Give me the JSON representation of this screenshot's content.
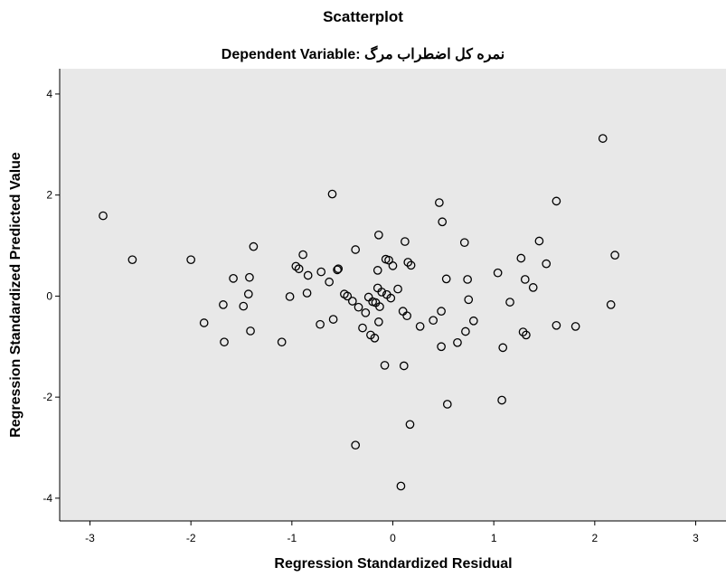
{
  "chart_data": {
    "type": "scatter",
    "title": "Scatterplot",
    "subtitle_prefix": "Dependent Variable: ",
    "subtitle_var": "نمره کل اضطراب مرگ",
    "xlabel": "Regression Standardized Residual",
    "ylabel": "Regression Standardized Predicted Value",
    "xlim": [
      -3.3,
      3.3
    ],
    "ylim": [
      -4.45,
      4.5
    ],
    "xticks": [
      -3,
      -2,
      -1,
      0,
      1,
      2,
      3
    ],
    "yticks": [
      -4,
      -2,
      0,
      2,
      4
    ],
    "grid": false,
    "plot_background": "#e8e8e8",
    "marker_color": "#000000",
    "points": [
      [
        -2.87,
        1.59
      ],
      [
        -2.58,
        0.72
      ],
      [
        -2.0,
        0.72
      ],
      [
        -1.87,
        -0.53
      ],
      [
        -1.68,
        -0.17
      ],
      [
        -1.67,
        -0.91
      ],
      [
        -1.58,
        0.35
      ],
      [
        -1.48,
        -0.2
      ],
      [
        -1.43,
        0.04
      ],
      [
        -1.42,
        0.37
      ],
      [
        -1.41,
        -0.69
      ],
      [
        -1.38,
        0.98
      ],
      [
        -1.1,
        -0.91
      ],
      [
        -1.02,
        -0.01
      ],
      [
        -0.96,
        0.59
      ],
      [
        -0.93,
        0.54
      ],
      [
        -0.89,
        0.82
      ],
      [
        -0.85,
        0.06
      ],
      [
        -0.84,
        0.41
      ],
      [
        -0.72,
        -0.56
      ],
      [
        -0.71,
        0.48
      ],
      [
        -0.63,
        0.28
      ],
      [
        -0.6,
        2.02
      ],
      [
        -0.59,
        -0.46
      ],
      [
        -0.55,
        0.52
      ],
      [
        -0.54,
        0.54
      ],
      [
        -0.48,
        0.04
      ],
      [
        -0.45,
        0.0
      ],
      [
        -0.4,
        -0.1
      ],
      [
        -0.37,
        0.92
      ],
      [
        -0.37,
        -2.95
      ],
      [
        -0.34,
        -0.22
      ],
      [
        -0.3,
        -0.63
      ],
      [
        -0.27,
        -0.33
      ],
      [
        -0.24,
        -0.02
      ],
      [
        -0.22,
        -0.77
      ],
      [
        -0.2,
        -0.11
      ],
      [
        -0.18,
        -0.83
      ],
      [
        -0.17,
        -0.13
      ],
      [
        -0.15,
        0.16
      ],
      [
        -0.15,
        0.51
      ],
      [
        -0.14,
        1.21
      ],
      [
        -0.14,
        -0.51
      ],
      [
        -0.13,
        -0.21
      ],
      [
        -0.11,
        0.08
      ],
      [
        -0.08,
        -1.37
      ],
      [
        -0.07,
        0.73
      ],
      [
        -0.06,
        0.03
      ],
      [
        -0.04,
        0.71
      ],
      [
        -0.02,
        -0.04
      ],
      [
        0.0,
        0.6
      ],
      [
        0.05,
        0.14
      ],
      [
        0.08,
        -3.76
      ],
      [
        0.1,
        -0.3
      ],
      [
        0.11,
        -1.38
      ],
      [
        0.12,
        1.08
      ],
      [
        0.14,
        -0.39
      ],
      [
        0.15,
        0.67
      ],
      [
        0.18,
        0.61
      ],
      [
        0.17,
        -2.54
      ],
      [
        0.27,
        -0.6
      ],
      [
        0.4,
        -0.48
      ],
      [
        0.46,
        1.85
      ],
      [
        0.48,
        -0.3
      ],
      [
        0.48,
        -1.0
      ],
      [
        0.49,
        1.47
      ],
      [
        0.53,
        0.34
      ],
      [
        0.54,
        -2.14
      ],
      [
        0.64,
        -0.92
      ],
      [
        0.71,
        1.06
      ],
      [
        0.72,
        -0.7
      ],
      [
        0.74,
        0.33
      ],
      [
        0.75,
        -0.07
      ],
      [
        0.8,
        -0.49
      ],
      [
        1.04,
        0.46
      ],
      [
        1.08,
        -2.06
      ],
      [
        1.09,
        -1.02
      ],
      [
        1.16,
        -0.12
      ],
      [
        1.27,
        0.75
      ],
      [
        1.29,
        -0.71
      ],
      [
        1.31,
        0.33
      ],
      [
        1.32,
        -0.77
      ],
      [
        1.39,
        0.17
      ],
      [
        1.45,
        1.09
      ],
      [
        1.52,
        0.64
      ],
      [
        1.62,
        -0.58
      ],
      [
        1.62,
        1.88
      ],
      [
        1.81,
        -0.6
      ],
      [
        2.08,
        3.12
      ],
      [
        2.16,
        -0.17
      ],
      [
        2.2,
        0.81
      ]
    ]
  }
}
